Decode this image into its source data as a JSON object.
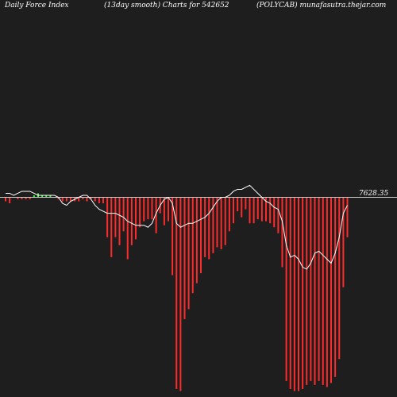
{
  "header": {
    "left": "Daily Force  Index",
    "center": "(13day smooth) Charts for 542652",
    "right": "(POLYCAB) munafasutra.thejar.com"
  },
  "colors": {
    "background": "#1e1e1e",
    "negative": "#ff2a2a",
    "positive": "#33ff33",
    "line": "#ffffff",
    "zero": "#cccccc"
  },
  "chart_data": {
    "type": "bar",
    "title": "",
    "xlabel": "",
    "ylabel": "",
    "zero_line_label": "7628.35",
    "ylim": [
      -100,
      10
    ],
    "values": [
      -2,
      -3,
      0,
      -1,
      -1,
      -1,
      -1,
      1,
      2,
      1,
      1,
      1,
      0,
      -1,
      -2,
      -2,
      -2,
      -2,
      -2,
      -1,
      -2,
      -1,
      -2,
      -3,
      -3,
      -20,
      -30,
      -20,
      -24,
      -17,
      -31,
      -24,
      -21,
      -15,
      -12,
      -11,
      -11,
      -18,
      -8,
      -14,
      -12,
      -39,
      -96,
      -97,
      -61,
      -56,
      -48,
      -43,
      -38,
      -30,
      -31,
      -28,
      -25,
      -26,
      -24,
      -17,
      -13,
      -7,
      -10,
      -6,
      -13,
      -13,
      -11,
      -12,
      -12,
      -13,
      -15,
      -18,
      -35,
      -92,
      -96,
      -97,
      -97,
      -96,
      -94,
      -92,
      -94,
      -92,
      -94,
      -95,
      -93,
      -90,
      -81,
      -45,
      -20
    ],
    "line": [
      2,
      2,
      1,
      2,
      3,
      3,
      3,
      2,
      1,
      1,
      1,
      1,
      1,
      0,
      -3,
      -4,
      -2,
      -1,
      0,
      1,
      1,
      -1,
      -4,
      -6,
      -7,
      -8,
      -8,
      -8,
      -9,
      -10,
      -12,
      -13,
      -14,
      -14,
      -14,
      -15,
      -13,
      -8,
      -4,
      -1,
      0,
      -3,
      -13,
      -15,
      -14,
      -13,
      -13,
      -12,
      -11,
      -10,
      -8,
      -5,
      -2,
      0,
      0,
      1,
      3,
      4,
      4,
      5,
      6,
      4,
      2,
      0,
      -2,
      -3,
      -5,
      -6,
      -12,
      -24,
      -30,
      -29,
      -31,
      -35,
      -36,
      -33,
      -28,
      -27,
      -29,
      -31,
      -33,
      -28,
      -20,
      -8,
      -4
    ]
  }
}
